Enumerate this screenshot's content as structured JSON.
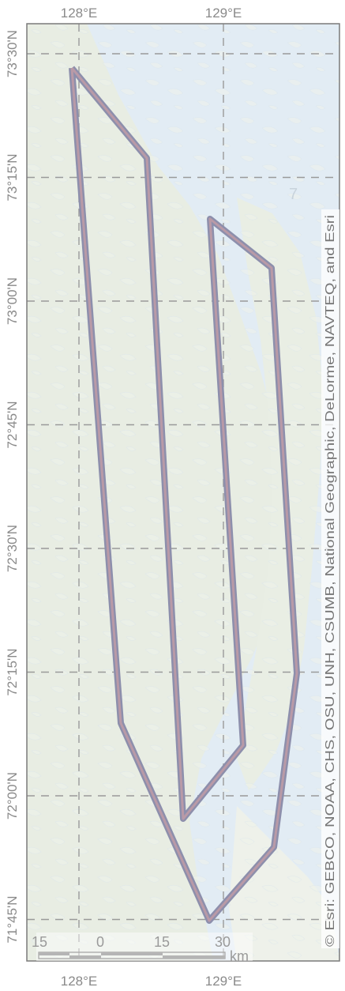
{
  "map": {
    "lon_ticks": [
      "128°E",
      "129°E"
    ],
    "lat_ticks": [
      "73°30'N",
      "73°15'N",
      "73°00'N",
      "72°45'N",
      "72°30'N",
      "72°15'N",
      "72°00'N",
      "71°45'N"
    ],
    "attribution": "© Esri: GEBCO, NOAA, CHS, OSU, UNH, CSUMB, National Geographic, DeLorme, NAVTEQ, and Esri",
    "scale_bar": {
      "labels": [
        "15",
        "0",
        "15",
        "30"
      ],
      "unit": "km"
    },
    "colors": {
      "water": "#e2ecf4",
      "land": "#e8ede3",
      "track_outer": "#8d8fac",
      "track_inner": "#b99aa7",
      "grid": "#9a9a9a"
    }
  }
}
